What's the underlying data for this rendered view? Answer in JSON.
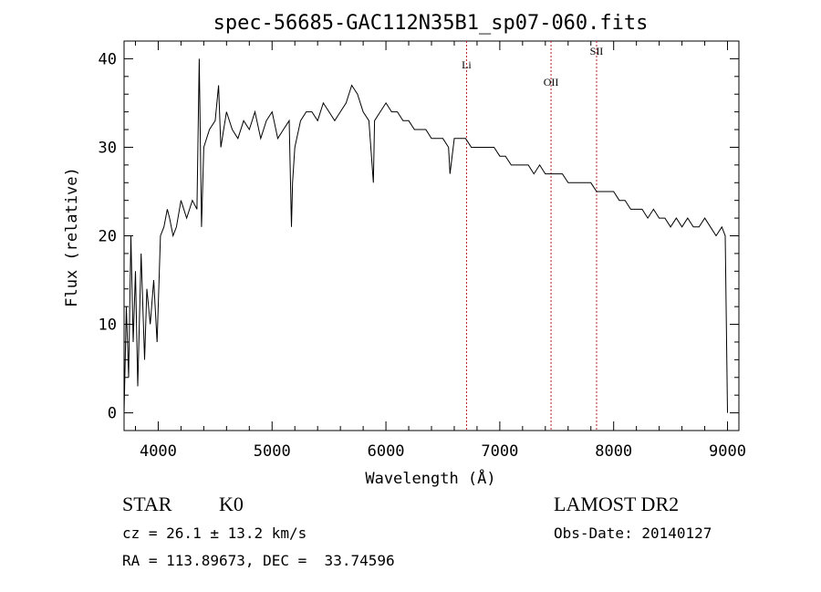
{
  "chart_data": {
    "type": "line",
    "title": "spec-56685-GAC112N35B1_sp07-060.fits",
    "xlabel": "Wavelength (Å)",
    "ylabel": "Flux (relative)",
    "xlim": [
      3700,
      9100
    ],
    "ylim": [
      -2,
      42
    ],
    "x_ticks": [
      4000,
      5000,
      6000,
      7000,
      8000,
      9000
    ],
    "y_ticks": [
      0,
      10,
      20,
      30,
      40
    ],
    "grid": false,
    "series": [
      {
        "x": [
          3700,
          3720,
          3740,
          3760,
          3780,
          3800,
          3820,
          3850,
          3880,
          3900,
          3930,
          3960,
          3990,
          4020,
          4050,
          4080,
          4100,
          4130,
          4160,
          4200,
          4250,
          4300,
          4340,
          4360,
          4380,
          4400,
          4450,
          4500,
          4530,
          4550,
          4600,
          4650,
          4700,
          4750,
          4800,
          4850,
          4900,
          4950,
          5000,
          5050,
          5100,
          5150,
          5170,
          5180,
          5200,
          5250,
          5300,
          5350,
          5400,
          5450,
          5500,
          5550,
          5600,
          5650,
          5700,
          5750,
          5800,
          5850,
          5890,
          5900,
          5950,
          6000,
          6050,
          6100,
          6150,
          6200,
          6250,
          6300,
          6350,
          6400,
          6450,
          6500,
          6550,
          6563,
          6600,
          6650,
          6700,
          6750,
          6800,
          6850,
          6900,
          6950,
          7000,
          7050,
          7100,
          7150,
          7200,
          7250,
          7300,
          7350,
          7400,
          7450,
          7500,
          7550,
          7600,
          7650,
          7700,
          7750,
          7800,
          7850,
          7900,
          7950,
          8000,
          8050,
          8100,
          8150,
          8200,
          8250,
          8300,
          8350,
          8400,
          8450,
          8500,
          8550,
          8600,
          8650,
          8700,
          8750,
          8800,
          8850,
          8900,
          8950,
          8980,
          9000
        ],
        "y": [
          0,
          12,
          4,
          20,
          8,
          16,
          3,
          18,
          6,
          14,
          10,
          15,
          8,
          20,
          21,
          23,
          22,
          20,
          21,
          24,
          22,
          24,
          23,
          40,
          21,
          30,
          32,
          33,
          37,
          30,
          34,
          32,
          31,
          33,
          32,
          34,
          31,
          33,
          34,
          31,
          32,
          33,
          21,
          26,
          30,
          33,
          34,
          34,
          33,
          35,
          34,
          33,
          34,
          35,
          37,
          36,
          34,
          33,
          26,
          33,
          34,
          35,
          34,
          34,
          33,
          33,
          32,
          32,
          32,
          31,
          31,
          31,
          30,
          27,
          31,
          31,
          31,
          30,
          30,
          30,
          30,
          30,
          29,
          29,
          28,
          28,
          28,
          28,
          27,
          28,
          27,
          27,
          27,
          27,
          26,
          26,
          26,
          26,
          26,
          25,
          25,
          25,
          25,
          24,
          24,
          23,
          23,
          23,
          22,
          23,
          22,
          22,
          21,
          22,
          21,
          22,
          21,
          21,
          22,
          21,
          20,
          21,
          20,
          0
        ]
      }
    ],
    "line_markers": [
      {
        "label": "Li",
        "x": 6708
      },
      {
        "label": "OII",
        "x": 7450
      },
      {
        "label": "SII",
        "x": 7850
      }
    ]
  },
  "info": {
    "class": "STAR",
    "subclass": "K0",
    "survey": "LAMOST DR2",
    "cz": "cz = 26.1 ± 13.2 km/s",
    "obs_date": "Obs-Date: 20140127",
    "coords": "RA = 113.89673, DEC =  33.74596"
  }
}
